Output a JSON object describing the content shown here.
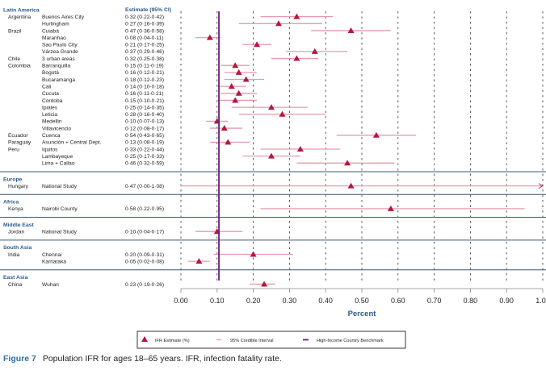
{
  "chart_data": {
    "type": "forest",
    "estimate_header": "Estimate (95% CI)",
    "xlabel": "Percent",
    "xlim": [
      0,
      1.0
    ],
    "xticks": [
      "0.00",
      "0.10",
      "0.20",
      "0.30",
      "0.40",
      "0.50",
      "0.60",
      "0.70",
      "0.80",
      "0.90",
      "1.00"
    ],
    "benchmark": 0.105,
    "grid": "dashed vertical",
    "colors": {
      "estimate": "#b5173f",
      "interval": "#e79aae",
      "benchmark": "#6a1b7a",
      "header": "#2b5a8a",
      "separator": "#3a5675"
    },
    "sections": [
      {
        "name": "Latin America",
        "rows": [
          {
            "country": "Argentina",
            "site": "Buenos Aires City",
            "label": "0·32 (0·22-0·42)",
            "est": 0.32,
            "lo": 0.22,
            "hi": 0.42
          },
          {
            "country": "",
            "site": "Hurlingham",
            "label": "0·27 (0·16-0·39)",
            "est": 0.27,
            "lo": 0.16,
            "hi": 0.39
          },
          {
            "country": "Brazil",
            "site": "Cuiabá",
            "label": "0·47 (0·36-0·58)",
            "est": 0.47,
            "lo": 0.36,
            "hi": 0.58
          },
          {
            "country": "",
            "site": "Maranhao",
            "label": "0·08 (0·04-0·11)",
            "est": 0.08,
            "lo": 0.04,
            "hi": 0.11
          },
          {
            "country": "",
            "site": "Sao Paulo City",
            "label": "0·21 (0·17-0·25)",
            "est": 0.21,
            "lo": 0.17,
            "hi": 0.25
          },
          {
            "country": "",
            "site": "Várzea Grande",
            "label": "0·37 (0·29-0·46)",
            "est": 0.37,
            "lo": 0.29,
            "hi": 0.46
          },
          {
            "country": "Chile",
            "site": "3 urban areas",
            "label": "0·32 (0·25-0·38)",
            "est": 0.32,
            "lo": 0.25,
            "hi": 0.38
          },
          {
            "country": "Colombia",
            "site": "Barranquilla",
            "label": "0·15 (0·11-0·19)",
            "est": 0.15,
            "lo": 0.11,
            "hi": 0.19
          },
          {
            "country": "",
            "site": "Bogotá",
            "label": "0·16 (0·12-0·21)",
            "est": 0.16,
            "lo": 0.12,
            "hi": 0.21
          },
          {
            "country": "",
            "site": "Bucaramanga",
            "label": "0·18 (0·12-0·23)",
            "est": 0.18,
            "lo": 0.12,
            "hi": 0.23
          },
          {
            "country": "",
            "site": "Cali",
            "label": "0·14 (0·10-0·18)",
            "est": 0.14,
            "lo": 0.1,
            "hi": 0.18
          },
          {
            "country": "",
            "site": "Cucuta",
            "label": "0·16 (0·11-0·21)",
            "est": 0.16,
            "lo": 0.11,
            "hi": 0.21
          },
          {
            "country": "",
            "site": "Córdoba",
            "label": "0·15 (0·10-0·21)",
            "est": 0.15,
            "lo": 0.1,
            "hi": 0.21
          },
          {
            "country": "",
            "site": "Ipiales",
            "label": "0·25 (0·14-0·35)",
            "est": 0.25,
            "lo": 0.14,
            "hi": 0.35
          },
          {
            "country": "",
            "site": "Leticia",
            "label": "0·28 (0·16-0·40)",
            "est": 0.28,
            "lo": 0.16,
            "hi": 0.4
          },
          {
            "country": "",
            "site": "Medellin",
            "label": "0·10 (0·07-0·13)",
            "est": 0.1,
            "lo": 0.07,
            "hi": 0.13
          },
          {
            "country": "",
            "site": "Villavicencio",
            "label": "0·12 (0·08-0·17)",
            "est": 0.12,
            "lo": 0.08,
            "hi": 0.17
          },
          {
            "country": "Ecuador",
            "site": "Cuenca",
            "label": "0·54 (0·43-0·65)",
            "est": 0.54,
            "lo": 0.43,
            "hi": 0.65
          },
          {
            "country": "Paraguay",
            "site": "Asunción + Central Dept.",
            "label": "0·13 (0·08-0·19)",
            "est": 0.13,
            "lo": 0.08,
            "hi": 0.19
          },
          {
            "country": "Peru",
            "site": "Iquitos",
            "label": "0·33 (0·22-0·44)",
            "est": 0.33,
            "lo": 0.22,
            "hi": 0.44
          },
          {
            "country": "",
            "site": "Lambayeque",
            "label": "0·25 (0·17-0·33)",
            "est": 0.25,
            "lo": 0.17,
            "hi": 0.33
          },
          {
            "country": "",
            "site": "Lima + Callao",
            "label": "0·46 (0·32-0·59)",
            "est": 0.46,
            "lo": 0.32,
            "hi": 0.59
          }
        ]
      },
      {
        "name": "Europe",
        "rows": [
          {
            "country": "Hungary",
            "site": "National Study",
            "label": "0·47 (0·00-1·08)",
            "est": 0.47,
            "lo": 0.0,
            "hi": 1.08
          }
        ]
      },
      {
        "name": "Africa",
        "rows": [
          {
            "country": "Kenya",
            "site": "Nairobi County",
            "label": "0·58 (0·22-0·95)",
            "est": 0.58,
            "lo": 0.22,
            "hi": 0.95
          }
        ]
      },
      {
        "name": "Middle East",
        "rows": [
          {
            "country": "Jordan",
            "site": "National Study",
            "label": "0·10 (0·04-0·17)",
            "est": 0.1,
            "lo": 0.04,
            "hi": 0.17
          }
        ]
      },
      {
        "name": "South Asia",
        "rows": [
          {
            "country": "India",
            "site": "Chennai",
            "label": "0·20 (0·09-0·31)",
            "est": 0.2,
            "lo": 0.09,
            "hi": 0.31
          },
          {
            "country": "",
            "site": "Karnataka",
            "label": "0·05 (0·02-0·08)",
            "est": 0.05,
            "lo": 0.02,
            "hi": 0.08
          }
        ]
      },
      {
        "name": "East Asia",
        "rows": [
          {
            "country": "China",
            "site": "Wuhan",
            "label": "0·23 (0·19-0·26)",
            "est": 0.23,
            "lo": 0.19,
            "hi": 0.26
          }
        ]
      }
    ],
    "legend": {
      "estimate": "IFR Estimate (%)",
      "interval": "95% Credible Interval",
      "benchmark": "High-Income Country Benchmark"
    }
  },
  "caption": {
    "label": "Figure 7",
    "text": "Population IFR for ages 18–65 years. IFR, infection fatality rate."
  }
}
